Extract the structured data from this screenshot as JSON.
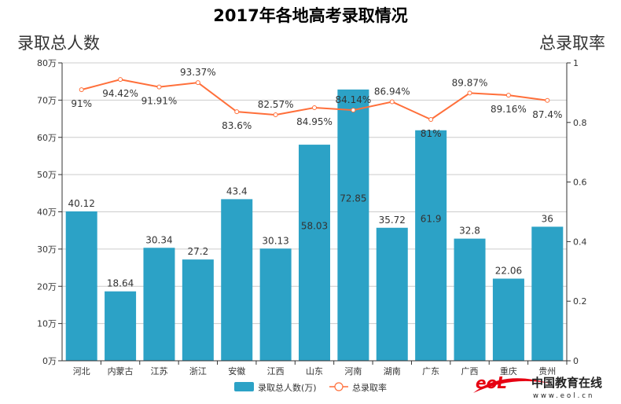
{
  "chart_data": {
    "type": "bar",
    "title": "2017年各地高考录取情况",
    "ylabel_left": "录取总人数",
    "ylabel_right": "总录取率",
    "categories": [
      "河北",
      "内蒙古",
      "江苏",
      "浙江",
      "安徽",
      "江西",
      "山东",
      "河南",
      "湖南",
      "广东",
      "广西",
      "重庆",
      "贵州"
    ],
    "series": [
      {
        "name": "录取总人数(万)",
        "type": "bar",
        "axis": "left",
        "color": "#2ca2c6",
        "values": [
          40.12,
          18.64,
          30.34,
          27.2,
          43.4,
          30.13,
          58.03,
          72.85,
          35.72,
          61.9,
          32.8,
          22.06,
          36
        ]
      },
      {
        "name": "总录取率",
        "type": "line",
        "axis": "right",
        "color": "#ff6f3a",
        "values": [
          0.91,
          0.9442,
          0.9191,
          0.9337,
          0.836,
          0.8257,
          0.8495,
          0.8414,
          0.8694,
          0.81,
          0.8987,
          0.8916,
          0.874
        ],
        "labels": [
          "91%",
          "94.42%",
          "91.91%",
          "93.37%",
          "83.6%",
          "82.57%",
          "84.95%",
          "84.14%",
          "86.94%",
          "81%",
          "89.87%",
          "89.16%",
          "87.4%"
        ]
      }
    ],
    "ylim_left": [
      0,
      80
    ],
    "yticks_left": [
      "0万",
      "10万",
      "20万",
      "30万",
      "40万",
      "50万",
      "60万",
      "70万",
      "80万"
    ],
    "ylim_right": [
      0,
      1
    ],
    "yticks_right": [
      "0",
      "0.2",
      "0.4",
      "0.6",
      "0.8",
      "1"
    ],
    "grid": true,
    "legend_position": "bottom"
  },
  "logo": {
    "brand": "中国教育在线",
    "url_text": "www.eol.cn",
    "mark": "eol"
  }
}
